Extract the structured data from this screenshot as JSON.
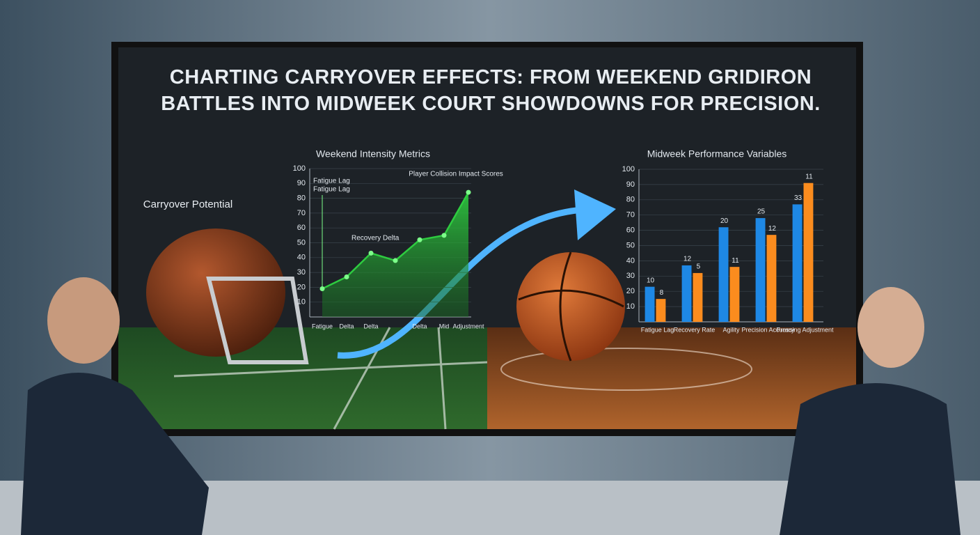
{
  "title": "CHARTING CARRYOVER EFFECTS: FROM WEEKEND GRIDIRON BATTLES INTO MIDWEEK COURT SHOWDOWNS FOR PRECISION.",
  "callout": "Carryover Potential",
  "chart_data": [
    {
      "type": "line",
      "title": "Weekend Intensity Metrics",
      "categories": [
        "Fatigue",
        "Delta",
        "Delta",
        null,
        "Delta",
        "Mid",
        "Adjustment"
      ],
      "values": [
        19,
        27,
        43,
        38,
        52,
        55,
        84
      ],
      "color": "#2ecc40",
      "ylim": [
        0,
        100
      ],
      "yticks": [
        10,
        20,
        30,
        40,
        50,
        60,
        70,
        80,
        90,
        100
      ],
      "annotations": [
        "Fatigue Lag",
        "Fatigue Lag",
        "Recovery Delta",
        "Player Collision Impact Scores"
      ]
    },
    {
      "type": "bar",
      "title": "Midweek Performance Variables",
      "categories": [
        "Fatigue Lag",
        "Recovery Rate",
        "Agility",
        "Precision Accuracy",
        "Pressing Adjustment"
      ],
      "series": [
        {
          "color": "#1e88e5",
          "values": [
            23,
            37,
            62,
            68,
            77
          ]
        },
        {
          "color": "#fb8c1e",
          "values": [
            15,
            32,
            36,
            57,
            91
          ]
        }
      ],
      "annotations": [
        [
          "10",
          "12",
          "20",
          "25",
          "33"
        ],
        [
          "8",
          "5",
          "11",
          "12",
          "11"
        ]
      ],
      "ylim": [
        0,
        100
      ],
      "yticks": [
        10,
        20,
        30,
        40,
        50,
        60,
        70,
        80,
        90,
        100
      ]
    }
  ]
}
